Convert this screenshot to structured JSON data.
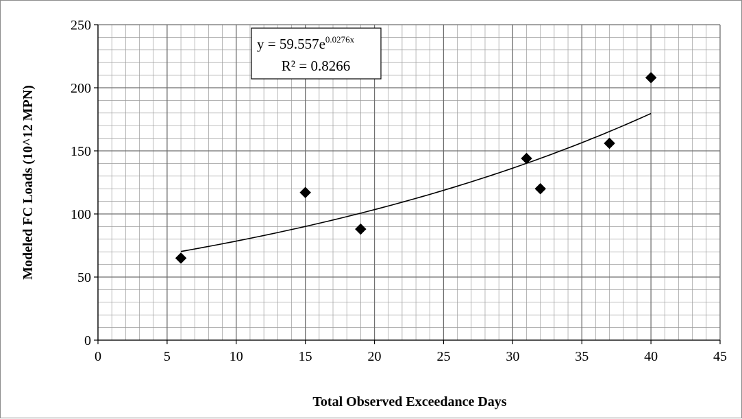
{
  "chart_data": {
    "type": "scatter",
    "xlabel": "Total Observed Exceedance Days",
    "ylabel": "Modeled FC Loads (10^12  MPN)",
    "xlim": [
      0,
      45
    ],
    "ylim": [
      0,
      250
    ],
    "xticks": [
      0,
      5,
      10,
      15,
      20,
      25,
      30,
      35,
      40,
      45
    ],
    "yticks": [
      0,
      50,
      100,
      150,
      200,
      250
    ],
    "grid": true,
    "legend": "none",
    "marker": "diamond",
    "marker_color": "#000000",
    "points": [
      {
        "x": 6,
        "y": 65
      },
      {
        "x": 15,
        "y": 117
      },
      {
        "x": 19,
        "y": 88
      },
      {
        "x": 31,
        "y": 144
      },
      {
        "x": 32,
        "y": 120
      },
      {
        "x": 37,
        "y": 156
      },
      {
        "x": 40,
        "y": 208
      }
    ],
    "trendline": {
      "type": "exponential",
      "a": 59.557,
      "b": 0.0276,
      "x_range": [
        6,
        40
      ],
      "equation_base": "y = 59.557e",
      "equation_exponent": "0.0276x",
      "r_squared_label": "R² = 0.8266"
    }
  }
}
